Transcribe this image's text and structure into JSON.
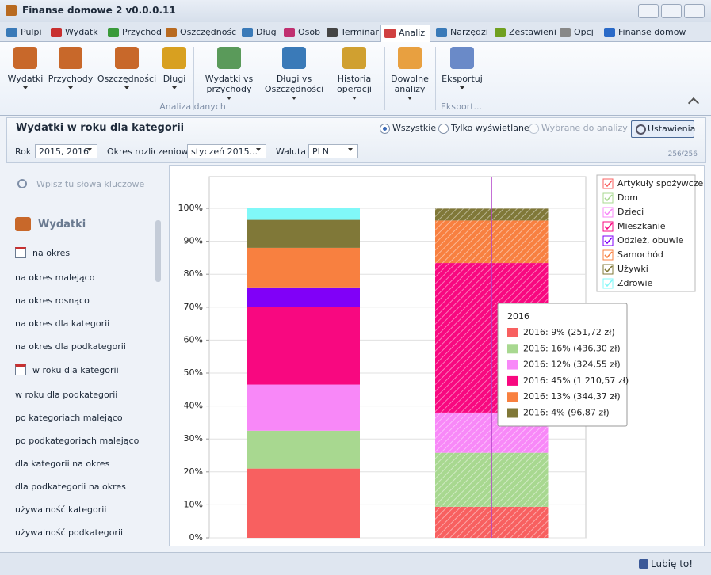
{
  "window": {
    "title": "Finanse domowe 2  v0.0.0.11"
  },
  "tabs": [
    "Pulpi",
    "Wydatk",
    "Przychod",
    "Oszczędnośc",
    "Dług",
    "Osob",
    "Terminar",
    "Analiz",
    "Narzędzi",
    "Zestawieni",
    "Opcj",
    "Finanse domow"
  ],
  "ribbon": {
    "groups": [
      {
        "label": "Analiza danych",
        "buttons": [
          "Wydatki",
          "Przychody",
          "Oszczędności",
          "Długi",
          "Wydatki vs\nprzychody",
          "Długi vs\nOszczędności",
          "Historia\noperacji",
          "Dowolne\nanalizy"
        ]
      },
      {
        "label": "Eksport...",
        "buttons": [
          "Eksportuj"
        ]
      }
    ]
  },
  "panel": {
    "title": "Wydatki w roku dla kategorii",
    "view_options": [
      "Wszystkie",
      "Tylko wyświetlane",
      "Wybrane do analizy"
    ],
    "settings_button": "Ustawienia",
    "filters": [
      {
        "label": "Rok",
        "value": "2015, 2016"
      },
      {
        "label": "Okres rozliczeniowy",
        "value": "styczeń 2015..."
      },
      {
        "label": "Waluta",
        "value": "PLN"
      }
    ],
    "count": "256/256"
  },
  "sidebar": {
    "search_placeholder": "Wpisz tu słowa kluczowe",
    "section": "Wydatki",
    "items": [
      "na okres",
      "na okres malejąco",
      "na okres rosnąco",
      "na okres dla kategorii",
      "na okres dla podkategorii",
      "w roku dla kategorii",
      "w roku dla podkategorii",
      "po kategoriach malejąco",
      "po podkategoriach malejąco",
      "dla kategorii na okres",
      "dla podkategorii na okres",
      "używalność kategorii",
      "używalność podkategorii"
    ]
  },
  "chart_data": {
    "type": "stacked_bar_100",
    "categories": [
      null,
      null
    ],
    "series": [
      {
        "name": "Artykuły spożywcze",
        "color": "#f86060",
        "values": [
          21,
          9.4
        ]
      },
      {
        "name": "Dom",
        "color": "#a8d890",
        "values": [
          11.5,
          16.4
        ]
      },
      {
        "name": "Dzieci",
        "color": "#f888f8",
        "values": [
          14,
          12.2
        ]
      },
      {
        "name": "Mieszkanie",
        "color": "#f80880",
        "values": [
          23.5,
          45.4
        ]
      },
      {
        "name": "Odzież, obuwie",
        "color": "#8000f8",
        "values": [
          6,
          null
        ]
      },
      {
        "name": "Samochód",
        "color": "#f88040",
        "values": [
          12,
          12.9
        ]
      },
      {
        "name": "Używki",
        "color": "#807838",
        "values": [
          8.5,
          3.6
        ]
      },
      {
        "name": "Zdrowie",
        "color": "#80f8f8",
        "values": [
          3.5,
          null
        ]
      }
    ],
    "ylim": [
      0,
      100
    ],
    "yticks": [
      {
        "value": 0,
        "label": "0%"
      },
      {
        "value": 10,
        "label": "10%"
      },
      {
        "value": 20,
        "label": "20%"
      },
      {
        "value": 30,
        "label": "30%"
      },
      {
        "value": 40,
        "label": "40%"
      },
      {
        "value": 50,
        "label": "50%"
      },
      {
        "value": 60,
        "label": "60%"
      },
      {
        "value": 70,
        "label": "70%"
      },
      {
        "value": 80,
        "label": "80%"
      },
      {
        "value": 90,
        "label": "90%"
      },
      {
        "value": 100,
        "label": "100%"
      }
    ],
    "grid": true,
    "legend": "top-right",
    "tooltip": {
      "title": "2016",
      "items": [
        {
          "label": "2016: 9% (251,72 zł)",
          "color": "#f86060"
        },
        {
          "label": "2016: 16% (436,30 zł)",
          "color": "#a8d890"
        },
        {
          "label": "2016: 12% (324,55 zł)",
          "color": "#f888f8"
        },
        {
          "label": "2016: 45% (1 210,57 zł)",
          "color": "#f80880"
        },
        {
          "label": "2016: 13% (344,37 zł)",
          "color": "#f88040"
        },
        {
          "label": "2016: 4% (96,87 zł)",
          "color": "#807838"
        }
      ]
    }
  },
  "status": {
    "like": "Lubię to!"
  }
}
